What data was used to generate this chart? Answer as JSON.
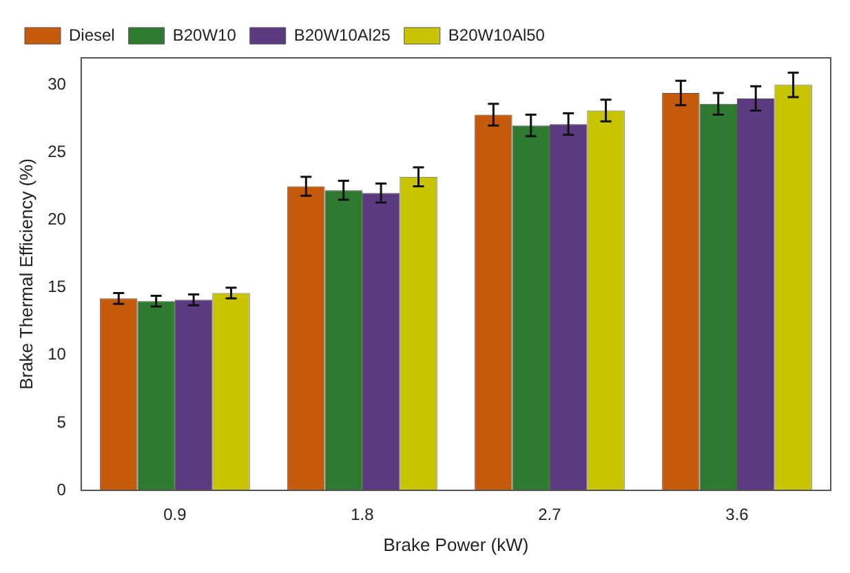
{
  "chart_data": {
    "type": "bar",
    "xlabel": "Brake Power (kW)",
    "ylabel": "Brake Thermal Efficiency (%)",
    "categories": [
      "0.9",
      "1.8",
      "2.7",
      "3.6"
    ],
    "series": [
      {
        "name": "Diesel",
        "color": "#c45a0c",
        "values": [
          14.2,
          22.5,
          27.8,
          29.4
        ],
        "errors": [
          0.4,
          0.7,
          0.8,
          0.9
        ]
      },
      {
        "name": "B20W10",
        "color": "#2e7a30",
        "values": [
          14.0,
          22.2,
          27.0,
          28.6
        ],
        "errors": [
          0.4,
          0.7,
          0.8,
          0.8
        ]
      },
      {
        "name": "B20W10Al25",
        "color": "#5a3a80",
        "values": [
          14.1,
          22.0,
          27.1,
          29.0
        ],
        "errors": [
          0.4,
          0.7,
          0.8,
          0.9
        ]
      },
      {
        "name": "B20W10Al50",
        "color": "#c8c400",
        "values": [
          14.6,
          23.2,
          28.1,
          30.0
        ],
        "errors": [
          0.4,
          0.7,
          0.8,
          0.9
        ]
      }
    ],
    "ylim": [
      0,
      32
    ],
    "yticks": [
      0,
      5,
      10,
      15,
      20,
      25,
      30
    ],
    "grid": false,
    "legend": "top left"
  }
}
